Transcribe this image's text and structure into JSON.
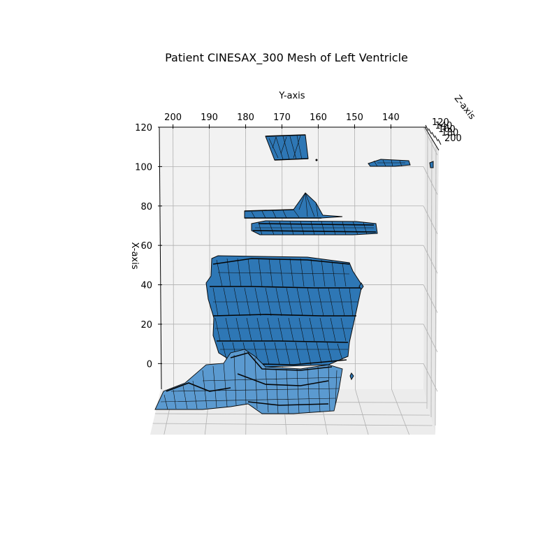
{
  "chart_data": {
    "type": "3d-mesh",
    "title": "Patient CINESAX_300 Mesh of Left Ventricle",
    "xlabel": "X-axis",
    "ylabel": "Y-axis",
    "zlabel": "Z-axis",
    "x_ticks": [
      "0",
      "20",
      "40",
      "60",
      "80",
      "100",
      "120"
    ],
    "y_ticks": [
      "200",
      "190",
      "180",
      "170",
      "160",
      "150",
      "140"
    ],
    "z_ticks": [
      "120",
      "140",
      "160",
      "180",
      "200"
    ],
    "xlim": [
      -13,
      120
    ],
    "ylim": [
      203,
      132
    ],
    "grid": true,
    "mesh_color": "#2e77b5",
    "edge_color": "#000000"
  }
}
